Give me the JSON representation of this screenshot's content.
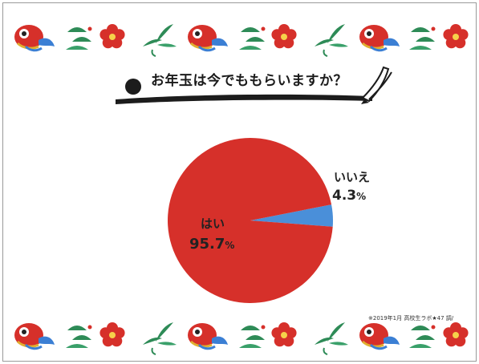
{
  "title": "お年玉は今でももらいますか？",
  "chart_data": {
    "type": "pie",
    "title": "お年玉は今でももらいますか？",
    "categories": [
      "はい",
      "いいえ"
    ],
    "values": [
      95.7,
      4.3
    ],
    "unit": "%",
    "value_labels": [
      "95.7",
      "4.3"
    ],
    "colors": [
      "#d6302a",
      "#4a8fd9"
    ]
  },
  "footnote": "※2019年1月 高校生ラボ★47 調/"
}
